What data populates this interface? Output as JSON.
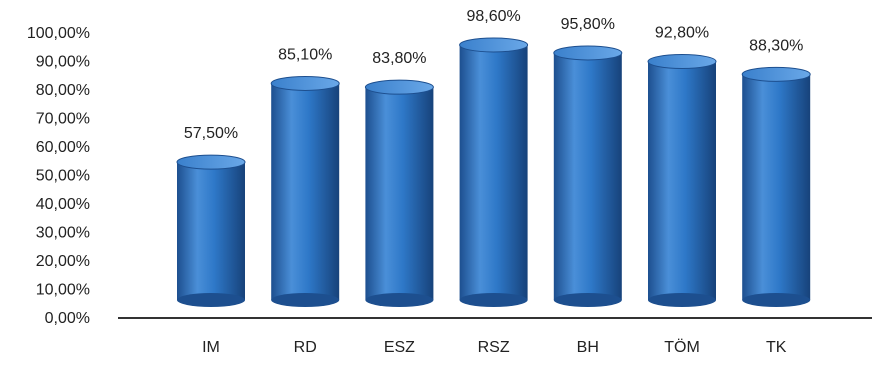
{
  "chart_data": {
    "type": "bar",
    "style": "3d-cylinder",
    "categories": [
      "IM",
      "RD",
      "ESZ",
      "RSZ",
      "BH",
      "TÖM",
      "TK"
    ],
    "values": [
      57.5,
      85.1,
      83.8,
      98.6,
      95.8,
      92.8,
      88.3
    ],
    "value_labels": [
      "57,50%",
      "85,10%",
      "83,80%",
      "98,60%",
      "95,80%",
      "92,80%",
      "88,30%"
    ],
    "y_ticks": [
      "0,00%",
      "10,00%",
      "20,00%",
      "30,00%",
      "40,00%",
      "50,00%",
      "60,00%",
      "70,00%",
      "80,00%",
      "90,00%",
      "100,00%"
    ],
    "ylim": [
      0,
      100
    ],
    "grid": false,
    "legend": "none",
    "colors": {
      "bar": "#2e78c8",
      "bar_dark": "#1d4f8f",
      "bar_light": "#5f9fe0",
      "axis": "#333333",
      "text": "#222222"
    }
  }
}
